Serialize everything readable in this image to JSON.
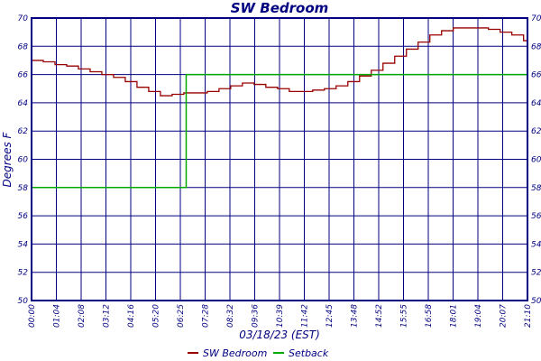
{
  "chart_data": {
    "type": "line",
    "title": "SW Bedroom",
    "xlabel": "03/18/23 (EST)",
    "ylabel": "Degrees F",
    "ylim": [
      50,
      70
    ],
    "yticks": [
      50,
      52,
      54,
      56,
      58,
      60,
      62,
      64,
      66,
      68,
      70
    ],
    "x_tick_labels": [
      "00:00",
      "01:04",
      "02:08",
      "03:12",
      "04:16",
      "05:20",
      "06:25",
      "07:28",
      "08:32",
      "09:36",
      "10:39",
      "11:42",
      "12:45",
      "13:48",
      "14:52",
      "15:55",
      "16:58",
      "18:01",
      "19:04",
      "20:07",
      "21:10"
    ],
    "grid": true,
    "legend_position": "bottom-center",
    "series": [
      {
        "name": "SW Bedroom",
        "color": "#990000",
        "x_hours": [
          0,
          0.5,
          1,
          1.5,
          2,
          2.5,
          3,
          3.5,
          4,
          4.5,
          5,
          5.5,
          6,
          6.5,
          7,
          7.5,
          8,
          8.5,
          9,
          9.5,
          10,
          10.5,
          11,
          11.5,
          12,
          12.5,
          13,
          13.5,
          14,
          14.5,
          15,
          15.5,
          16,
          16.5,
          17,
          17.5,
          18,
          18.5,
          19,
          19.5,
          20,
          20.5,
          21,
          21.17
        ],
        "values": [
          67.0,
          66.9,
          66.7,
          66.6,
          66.4,
          66.2,
          66.0,
          65.8,
          65.5,
          65.1,
          64.8,
          64.5,
          64.6,
          64.7,
          64.7,
          64.8,
          65.0,
          65.2,
          65.4,
          65.3,
          65.1,
          65.0,
          64.8,
          64.8,
          64.9,
          65.0,
          65.2,
          65.5,
          65.9,
          66.3,
          66.8,
          67.3,
          67.8,
          68.3,
          68.8,
          69.1,
          69.3,
          69.3,
          69.3,
          69.2,
          69.0,
          68.8,
          68.4,
          68.2
        ]
      },
      {
        "name": "Setback",
        "color": "#00aa00",
        "x_hours": [
          0,
          6.6,
          6.6,
          21.17
        ],
        "values": [
          58,
          58,
          66,
          66
        ]
      }
    ]
  }
}
